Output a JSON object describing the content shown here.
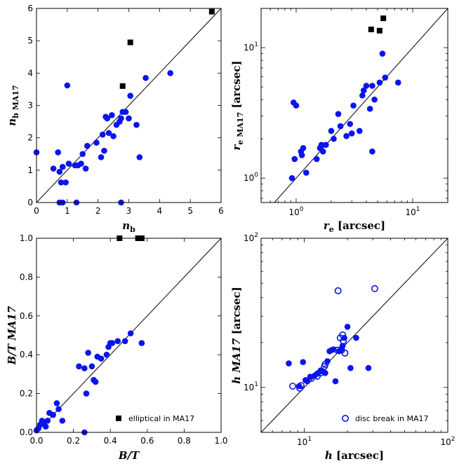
{
  "chart_data": [
    {
      "type": "scatter",
      "xlabel": "n_b",
      "ylabel": "n_b MA17",
      "xscale": "linear",
      "yscale": "linear",
      "xlim": [
        0,
        6
      ],
      "ylim": [
        0,
        6
      ],
      "xticks": [
        "0",
        "1",
        "2",
        "3",
        "4",
        "5",
        "6"
      ],
      "yticks": [
        "0",
        "1",
        "2",
        "3",
        "4",
        "5",
        "6"
      ],
      "one_to_one_line": true,
      "series": [
        {
          "marker": "circle",
          "color": "#0a14ee",
          "x": [
            0.0,
            0.55,
            0.7,
            0.75,
            0.8,
            0.85,
            0.95,
            1.0,
            1.05,
            1.25,
            1.35,
            1.45,
            1.5,
            1.6,
            1.65,
            1.95,
            2.1,
            2.15,
            2.2,
            2.25,
            2.3,
            2.35,
            2.45,
            2.5,
            2.6,
            2.7,
            2.75,
            2.8,
            2.9,
            3.0,
            3.05,
            3.25,
            3.35,
            3.55,
            4.35,
            0.75,
            0.85,
            1.3,
            2.75
          ],
          "y": [
            1.55,
            1.05,
            1.55,
            0.95,
            0.62,
            1.1,
            0.62,
            3.62,
            1.2,
            1.15,
            1.15,
            1.2,
            1.5,
            1.05,
            1.75,
            1.85,
            1.4,
            2.1,
            1.6,
            2.65,
            2.6,
            2.15,
            2.7,
            2.05,
            2.4,
            2.5,
            2.6,
            2.8,
            2.8,
            2.6,
            3.3,
            2.4,
            1.4,
            3.85,
            4.0,
            0.0,
            0.0,
            0.0,
            0.0
          ]
        },
        {
          "marker": "square",
          "color": "#000000",
          "x": [
            2.8,
            3.05,
            5.7
          ],
          "y": [
            3.6,
            4.95,
            5.9
          ]
        }
      ]
    },
    {
      "type": "scatter",
      "xlabel": "r_e [arcsec]",
      "ylabel": "r_e MA17 [arcsec]",
      "xscale": "log",
      "yscale": "log",
      "xlim": [
        0.5,
        20
      ],
      "ylim": [
        0.65,
        20
      ],
      "xticks": [
        "10^0",
        "10^1"
      ],
      "yticks": [
        "10^0",
        "10^1"
      ],
      "one_to_one_line": true,
      "series": [
        {
          "marker": "circle",
          "color": "#0a14ee",
          "x": [
            0.92,
            0.95,
            0.97,
            1.0,
            1.1,
            1.12,
            1.15,
            1.22,
            1.5,
            1.6,
            1.65,
            1.7,
            1.8,
            2.0,
            2.1,
            2.3,
            2.4,
            2.7,
            2.9,
            3.0,
            3.1,
            3.5,
            3.7,
            3.8,
            4.0,
            4.3,
            4.5,
            4.7,
            5.2,
            5.5,
            5.8,
            7.5,
            4.5
          ],
          "y": [
            1.0,
            3.8,
            1.4,
            3.6,
            1.6,
            1.5,
            1.7,
            1.1,
            1.4,
            1.7,
            1.8,
            1.6,
            1.8,
            2.3,
            2.0,
            3.1,
            2.5,
            2.1,
            2.6,
            2.2,
            3.6,
            2.3,
            4.3,
            4.7,
            5.1,
            3.4,
            5.1,
            4.0,
            5.4,
            9.0,
            5.9,
            5.4,
            1.6
          ]
        },
        {
          "marker": "square",
          "color": "#000000",
          "x": [
            4.4,
            5.2,
            5.6
          ],
          "y": [
            13.8,
            13.5,
            16.8
          ]
        }
      ]
    },
    {
      "type": "scatter",
      "xlabel": "B/T",
      "ylabel": "B/T MA17",
      "xscale": "linear",
      "yscale": "linear",
      "xlim": [
        0,
        1
      ],
      "ylim": [
        0,
        1
      ],
      "xticks": [
        "0.0",
        "0.2",
        "0.4",
        "0.6",
        "0.8",
        "1.0"
      ],
      "yticks": [
        "0.0",
        "0.2",
        "0.4",
        "0.6",
        "0.8",
        "1.0"
      ],
      "one_to_one_line": true,
      "legend": {
        "label": "elliptical in MA17",
        "marker": "square",
        "loc": "lower-right"
      },
      "series": [
        {
          "marker": "circle",
          "color": "#0a14ee",
          "x": [
            0.0,
            0.01,
            0.02,
            0.03,
            0.04,
            0.05,
            0.06,
            0.07,
            0.09,
            0.11,
            0.12,
            0.14,
            0.23,
            0.26,
            0.27,
            0.28,
            0.3,
            0.31,
            0.32,
            0.33,
            0.35,
            0.38,
            0.39,
            0.4,
            0.41,
            0.44,
            0.48,
            0.51,
            0.57,
            0.26
          ],
          "y": [
            0.01,
            0.02,
            0.04,
            0.06,
            0.05,
            0.03,
            0.06,
            0.1,
            0.09,
            0.15,
            0.12,
            0.06,
            0.34,
            0.33,
            0.2,
            0.41,
            0.34,
            0.27,
            0.26,
            0.39,
            0.38,
            0.4,
            0.44,
            0.46,
            0.46,
            0.47,
            0.47,
            0.51,
            0.46,
            0.0
          ]
        },
        {
          "marker": "square",
          "color": "#000000",
          "x": [
            0.45,
            0.55,
            0.57
          ],
          "y": [
            1.0,
            1.0,
            1.0
          ]
        }
      ]
    },
    {
      "type": "scatter",
      "xlabel": "h [arcsec]",
      "ylabel": "h MA17 [arcsec]",
      "xscale": "log",
      "yscale": "log",
      "xlim": [
        5,
        100
      ],
      "ylim": [
        5,
        100
      ],
      "xticks": [
        "10^1",
        "10^2"
      ],
      "yticks": [
        "10^1",
        "10^2"
      ],
      "one_to_one_line": true,
      "legend": {
        "label": "disc break in MA17",
        "marker": "open-circle",
        "loc": "lower-right"
      },
      "series": [
        {
          "marker": "circle",
          "color": "#0a14ee",
          "x": [
            7.8,
            9.2,
            9.8,
            10.2,
            10.5,
            11.0,
            11.8,
            12.2,
            12.5,
            13.0,
            13.5,
            14.0,
            14.5,
            15.0,
            15.5,
            16.0,
            16.5,
            17.5,
            18.0,
            18.5,
            19.0,
            20.0,
            21.0,
            23.0,
            28.0
          ],
          "y": [
            14.5,
            10.2,
            14.8,
            11.2,
            11.0,
            11.8,
            12.0,
            12.3,
            12.5,
            13.0,
            12.8,
            12.5,
            15.0,
            17.5,
            17.8,
            18.0,
            11.0,
            17.5,
            18.0,
            19.0,
            21.5,
            25.5,
            13.5,
            21.5,
            13.5
          ]
        },
        {
          "marker": "open-circle",
          "color": "#0a14ee",
          "x": [
            8.3,
            9.3,
            9.5,
            11.2,
            12.3,
            13.0,
            13.8,
            14.0,
            17.0,
            17.2,
            17.8,
            18.2,
            18.5,
            18.7,
            19.2,
            31.0
          ],
          "y": [
            10.2,
            9.9,
            10.3,
            11.5,
            11.9,
            12.5,
            13.8,
            14.3,
            17.8,
            44.5,
            21.5,
            17.8,
            22.5,
            20.5,
            17.0,
            46.0
          ]
        }
      ]
    }
  ]
}
